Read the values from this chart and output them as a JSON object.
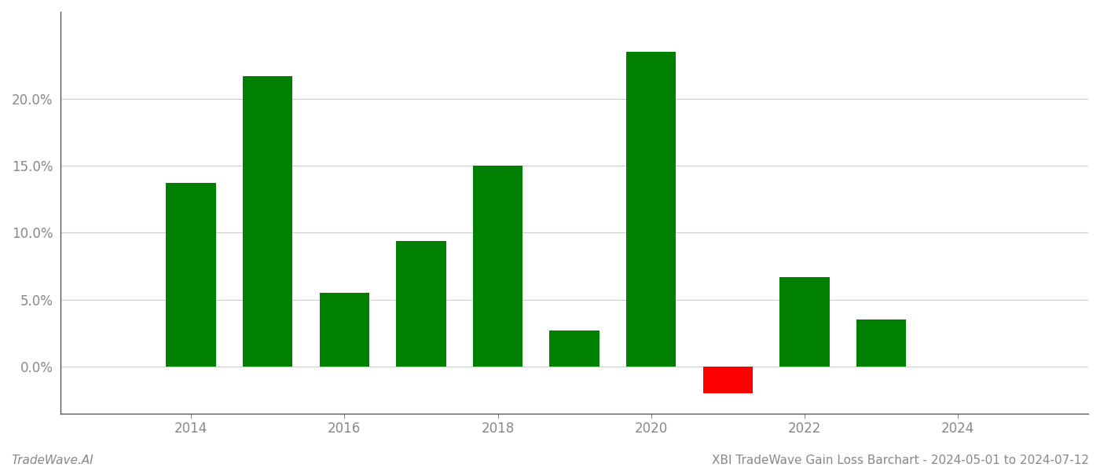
{
  "years": [
    2014,
    2015,
    2016,
    2017,
    2018,
    2019,
    2020,
    2021,
    2022,
    2023
  ],
  "values": [
    0.137,
    0.217,
    0.055,
    0.094,
    0.15,
    0.027,
    0.235,
    -0.02,
    0.067,
    0.035
  ],
  "colors": [
    "#008000",
    "#008000",
    "#008000",
    "#008000",
    "#008000",
    "#008000",
    "#008000",
    "#ff0000",
    "#008000",
    "#008000"
  ],
  "title": "XBI TradeWave Gain Loss Barchart - 2024-05-01 to 2024-07-12",
  "watermark": "TradeWave.AI",
  "ylim_min": -0.035,
  "ylim_max": 0.265,
  "bar_width": 0.65,
  "background_color": "#ffffff",
  "grid_color": "#cccccc",
  "axis_color": "#555555",
  "tick_color": "#888888",
  "title_fontsize": 11,
  "watermark_fontsize": 11,
  "ytick_values": [
    0.0,
    0.05,
    0.1,
    0.15,
    0.2
  ],
  "xtick_values": [
    2014,
    2016,
    2018,
    2020,
    2022,
    2024
  ],
  "xlim_min": 2012.3,
  "xlim_max": 2025.7
}
